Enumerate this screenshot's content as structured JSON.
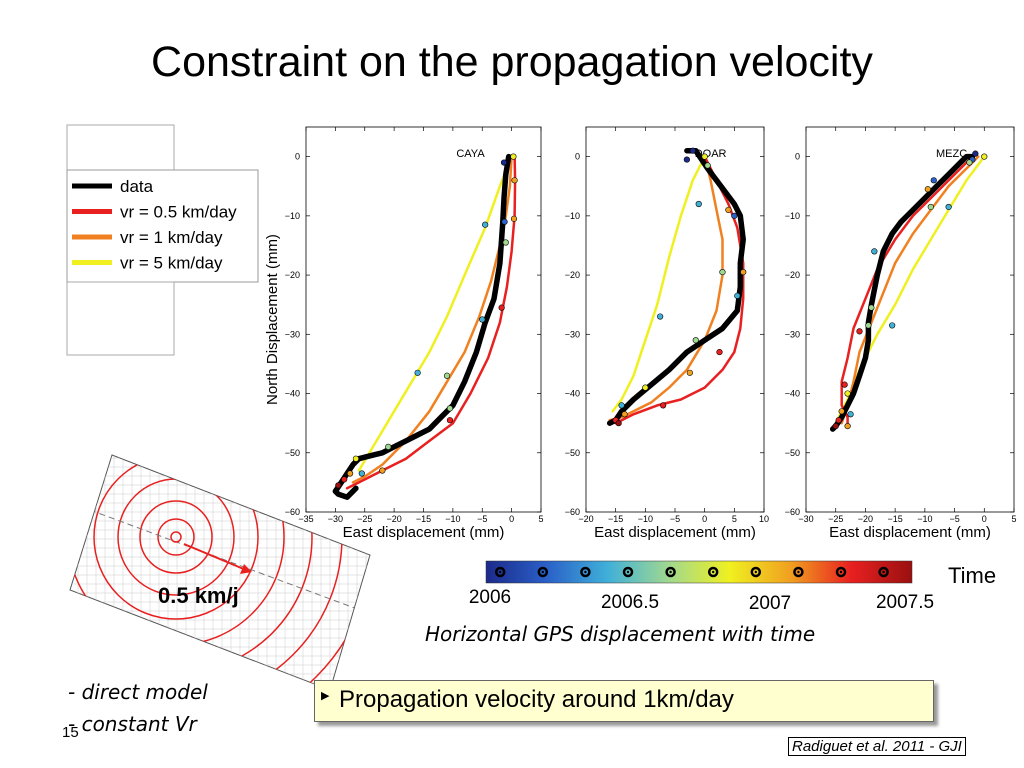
{
  "slide": {
    "title": "Constraint on the propagation velocity",
    "caption": "Horizontal GPS displacement with time",
    "bullets": [
      "- direct model",
      "- constant Vr"
    ],
    "page_number": "15",
    "callout": "Propagation velocity around 1km/day",
    "reference": "Radiguet et al. 2011 - GJI",
    "speed_label": "0.5 km/j",
    "time_label": "Time"
  },
  "legend": {
    "entries": [
      {
        "label": "data",
        "color": "#000000"
      },
      {
        "label": "vr = 0.5 km/day",
        "color": "#e82020"
      },
      {
        "label": "vr = 1 km/day",
        "color": "#f08020"
      },
      {
        "label": "vr = 5 km/day",
        "color": "#f0f020"
      }
    ]
  },
  "colorbar": {
    "tick_labels": [
      "2006",
      "2006.5",
      "2007",
      "2007.5"
    ],
    "range": [
      2006,
      2007.5
    ],
    "markers": [
      2006.05,
      2006.2,
      2006.35,
      2006.5,
      2006.65,
      2006.8,
      2006.95,
      2007.1,
      2007.25,
      2007.4
    ],
    "stops": [
      "#1c2a8a",
      "#2a60c8",
      "#40b0d8",
      "#a0d890",
      "#f0f020",
      "#f0a020",
      "#e82020",
      "#9a1010"
    ]
  },
  "chart_data": [
    {
      "type": "line",
      "station": "CAYA",
      "xlabel": "East displacement (mm)",
      "ylabel": "North Displacement (mm)",
      "xlim": [
        -35,
        5
      ],
      "ylim": [
        -60,
        5
      ],
      "xticks": [
        -35,
        -30,
        -25,
        -20,
        -15,
        -10,
        -5,
        0,
        5
      ],
      "yticks": [
        0,
        -10,
        -20,
        -30,
        -40,
        -50,
        -60
      ],
      "series": [
        {
          "name": "data",
          "x": [
            -0.5,
            -1,
            -1.3,
            -1.5,
            -2,
            -3,
            -4.5,
            -6,
            -8,
            -10,
            -12,
            -14,
            -16,
            -18,
            -20,
            -22,
            -24,
            -26,
            -27,
            -28,
            -29,
            -30,
            -29.5,
            -28,
            -26.5
          ],
          "y": [
            0,
            -3,
            -7,
            -11,
            -18,
            -24,
            -28,
            -33,
            -38,
            -42,
            -44,
            -46,
            -47,
            -48,
            -49,
            -50,
            -50.5,
            -51,
            -52,
            -53.5,
            -55,
            -56.5,
            -57,
            -57.5,
            -56
          ]
        },
        {
          "name": "vr = 0.5 km/day",
          "x": [
            0.5,
            0.6,
            0.5,
            0,
            -0.8,
            -2,
            -4,
            -7,
            -10,
            -14,
            -18,
            -22,
            -26,
            -28
          ],
          "y": [
            0,
            -4,
            -10,
            -16,
            -22,
            -28,
            -34,
            -40,
            -45,
            -48,
            -51,
            -53,
            -55,
            -56
          ]
        },
        {
          "name": "vr = 1 km/day",
          "x": [
            0,
            -0.3,
            -1,
            -2,
            -3.5,
            -5.5,
            -8,
            -11,
            -14,
            -18,
            -22,
            -25,
            -27
          ],
          "y": [
            0,
            -5,
            -10,
            -15,
            -21,
            -27,
            -33,
            -38,
            -43,
            -48,
            -52,
            -54,
            -55
          ]
        },
        {
          "name": "vr = 5 km/day",
          "x": [
            0,
            -2,
            -4.5,
            -8,
            -11,
            -14,
            -17,
            -20,
            -23,
            -26
          ],
          "y": [
            0,
            -5,
            -12,
            -20,
            -27,
            -33,
            -38,
            -43,
            -48,
            -53
          ]
        }
      ],
      "markers": [
        {
          "x": -1.3,
          "y": -1,
          "color": "#1c2a8a"
        },
        {
          "x": -1.2,
          "y": -11,
          "color": "#2a60c8"
        },
        {
          "x": -5,
          "y": -27.5,
          "color": "#40b0d8"
        },
        {
          "x": -10.5,
          "y": -42.5,
          "color": "#a0d890"
        },
        {
          "x": -21,
          "y": -49,
          "color": "#a0d890"
        },
        {
          "x": -26.5,
          "y": -51,
          "color": "#f0f020"
        },
        {
          "x": -27.5,
          "y": -53.5,
          "color": "#f0a020"
        },
        {
          "x": -28.5,
          "y": -54.5,
          "color": "#e82020"
        },
        {
          "x": -29.5,
          "y": -55.5,
          "color": "#9a1010"
        },
        {
          "x": 0.3,
          "y": 0,
          "color": "#f0f020"
        },
        {
          "x": 0.5,
          "y": -4,
          "color": "#f0a020"
        },
        {
          "x": 0.4,
          "y": -10.5,
          "color": "#f0a020"
        },
        {
          "x": -1.7,
          "y": -25.5,
          "color": "#e82020"
        },
        {
          "x": -10.5,
          "y": -44.5,
          "color": "#e82020"
        },
        {
          "x": -1,
          "y": -14.5,
          "color": "#a0d890"
        },
        {
          "x": -11,
          "y": -37,
          "color": "#a0d890"
        },
        {
          "x": -22,
          "y": -53,
          "color": "#f0a020"
        },
        {
          "x": -4.5,
          "y": -11.5,
          "color": "#40b0d8"
        },
        {
          "x": -16,
          "y": -36.5,
          "color": "#40b0d8"
        },
        {
          "x": -25.5,
          "y": -53.5,
          "color": "#40b0d8"
        }
      ]
    },
    {
      "type": "line",
      "station": "DOAR",
      "xlabel": "East displacement (mm)",
      "ylabel": "",
      "xlim": [
        -20,
        10
      ],
      "ylim": [
        -60,
        5
      ],
      "xticks": [
        -20,
        -15,
        -10,
        -5,
        0,
        5,
        10
      ],
      "yticks": [
        0,
        -10,
        -20,
        -30,
        -40,
        -50,
        -60
      ],
      "series": [
        {
          "name": "data",
          "x": [
            -3,
            -1.5,
            -0.5,
            0.5,
            2,
            3.5,
            5,
            6,
            6.5,
            6,
            6,
            5.5,
            3,
            0,
            -3,
            -6,
            -9,
            -12,
            -14,
            -15,
            -16
          ],
          "y": [
            1,
            1,
            -0.5,
            -2,
            -4,
            -6,
            -8,
            -10,
            -14,
            -18,
            -22,
            -26,
            -29,
            -31,
            -33,
            -36,
            -38.5,
            -41,
            -43,
            -44.5,
            -45
          ]
        },
        {
          "name": "vr = 0.5 km/day",
          "x": [
            0,
            2,
            4,
            5.5,
            6.5,
            6.5,
            6,
            5,
            3,
            0,
            -4,
            -8,
            -12,
            -15
          ],
          "y": [
            0,
            -4,
            -8,
            -12,
            -18,
            -24,
            -29,
            -33,
            -36,
            -39,
            -41,
            -42,
            -43.5,
            -45
          ]
        },
        {
          "name": "vr = 1 km/day",
          "x": [
            0,
            1,
            2,
            3,
            3,
            2,
            0,
            -3,
            -6,
            -9,
            -12,
            -14,
            -16
          ],
          "y": [
            0,
            -4,
            -9,
            -14,
            -20,
            -26,
            -31,
            -36,
            -39,
            -41.5,
            -43,
            -44,
            -44.5
          ]
        },
        {
          "name": "vr = 5 km/day",
          "x": [
            0,
            -2,
            -4,
            -6,
            -8,
            -10,
            -12,
            -14,
            -15.5
          ],
          "y": [
            0,
            -4,
            -10,
            -17,
            -25,
            -31,
            -37,
            -41,
            -43
          ]
        }
      ],
      "markers": [
        {
          "x": -2,
          "y": 1,
          "color": "#1c2a8a"
        },
        {
          "x": -3,
          "y": -0.5,
          "color": "#1c2a8a"
        },
        {
          "x": 5,
          "y": -10,
          "color": "#2a60c8"
        },
        {
          "x": 5.5,
          "y": -23.5,
          "color": "#40b0d8"
        },
        {
          "x": -1.5,
          "y": -31,
          "color": "#a0d890"
        },
        {
          "x": -10,
          "y": -39,
          "color": "#f0f020"
        },
        {
          "x": -15,
          "y": -44.5,
          "color": "#e82020"
        },
        {
          "x": -14.5,
          "y": -45,
          "color": "#9a1010"
        },
        {
          "x": 0,
          "y": 0,
          "color": "#f0f020"
        },
        {
          "x": 4,
          "y": -9,
          "color": "#f0a020"
        },
        {
          "x": 6.5,
          "y": -19.5,
          "color": "#f0a020"
        },
        {
          "x": 2.5,
          "y": -33,
          "color": "#e82020"
        },
        {
          "x": -7,
          "y": -42,
          "color": "#e82020"
        },
        {
          "x": 0.5,
          "y": -1.5,
          "color": "#a0d890"
        },
        {
          "x": 3,
          "y": -19.5,
          "color": "#a0d890"
        },
        {
          "x": -2.5,
          "y": -36.5,
          "color": "#f0a020"
        },
        {
          "x": -13.5,
          "y": -43.5,
          "color": "#f0a020"
        },
        {
          "x": -1,
          "y": -8,
          "color": "#40b0d8"
        },
        {
          "x": -7.5,
          "y": -27,
          "color": "#40b0d8"
        },
        {
          "x": -14,
          "y": -42,
          "color": "#40b0d8"
        }
      ]
    },
    {
      "type": "line",
      "station": "MEZC",
      "xlabel": "East displacement (mm)",
      "ylabel": "",
      "xlim": [
        -30,
        5
      ],
      "ylim": [
        -60,
        5
      ],
      "xticks": [
        -30,
        -25,
        -20,
        -15,
        -10,
        -5,
        0,
        5
      ],
      "yticks": [
        0,
        -10,
        -20,
        -30,
        -40,
        -50,
        -60
      ],
      "series": [
        {
          "name": "data",
          "x": [
            -2,
            -3,
            -4,
            -6,
            -8,
            -10,
            -12,
            -14,
            -15.5,
            -17,
            -18,
            -19,
            -19.5,
            -19.5,
            -20,
            -21,
            -22,
            -23,
            -24,
            -25,
            -25.5
          ],
          "y": [
            0,
            0,
            -1,
            -3,
            -5,
            -7,
            -9,
            -11,
            -13,
            -16,
            -20,
            -25,
            -28,
            -31,
            -34,
            -37,
            -40,
            -42,
            -44,
            -45.5,
            -46
          ]
        },
        {
          "name": "vr = 0.5 km/day",
          "x": [
            -2,
            -4,
            -6,
            -9,
            -12,
            -15,
            -18,
            -20,
            -22,
            -23,
            -24,
            -24,
            -23,
            -23
          ],
          "y": [
            0,
            -2,
            -4,
            -7,
            -10,
            -14,
            -19,
            -24,
            -29,
            -34,
            -38,
            -42,
            -44,
            -45
          ]
        },
        {
          "name": "vr = 1 km/day",
          "x": [
            -1,
            -3,
            -6,
            -9,
            -12,
            -15,
            -17,
            -19,
            -21,
            -22,
            -23,
            -24
          ],
          "y": [
            0,
            -2,
            -5,
            -9,
            -13,
            -18,
            -23,
            -28,
            -33,
            -38,
            -42,
            -45
          ]
        },
        {
          "name": "vr = 5 km/day",
          "x": [
            0,
            -3,
            -6,
            -9,
            -12,
            -15,
            -18,
            -21,
            -23,
            -25
          ],
          "y": [
            0,
            -4,
            -9,
            -14,
            -19,
            -25,
            -30,
            -36,
            -41,
            -45
          ]
        }
      ],
      "markers": [
        {
          "x": -1.5,
          "y": 0.5,
          "color": "#1c2a8a"
        },
        {
          "x": -2,
          "y": -0.5,
          "color": "#2a60c8"
        },
        {
          "x": -8.5,
          "y": -4,
          "color": "#2a60c8"
        },
        {
          "x": -18.5,
          "y": -16,
          "color": "#40b0d8"
        },
        {
          "x": -19.5,
          "y": -28.5,
          "color": "#a0d890"
        },
        {
          "x": -23,
          "y": -40,
          "color": "#f0f020"
        },
        {
          "x": -24,
          "y": -43,
          "color": "#f0a020"
        },
        {
          "x": -24.5,
          "y": -44.5,
          "color": "#e82020"
        },
        {
          "x": -25,
          "y": -45.5,
          "color": "#9a1010"
        },
        {
          "x": 0,
          "y": 0,
          "color": "#f0f020"
        },
        {
          "x": -9.5,
          "y": -5.5,
          "color": "#f0a020"
        },
        {
          "x": -21,
          "y": -29.5,
          "color": "#e82020"
        },
        {
          "x": -23.5,
          "y": -38.5,
          "color": "#e82020"
        },
        {
          "x": -23,
          "y": -45.5,
          "color": "#f0a020"
        },
        {
          "x": -2.5,
          "y": -1,
          "color": "#a0d890"
        },
        {
          "x": -9,
          "y": -8.5,
          "color": "#a0d890"
        },
        {
          "x": -19,
          "y": -25.5,
          "color": "#a0d890"
        },
        {
          "x": -6,
          "y": -8.5,
          "color": "#40b0d8"
        },
        {
          "x": -15.5,
          "y": -28.5,
          "color": "#40b0d8"
        },
        {
          "x": -22.5,
          "y": -43.5,
          "color": "#40b0d8"
        }
      ]
    }
  ]
}
